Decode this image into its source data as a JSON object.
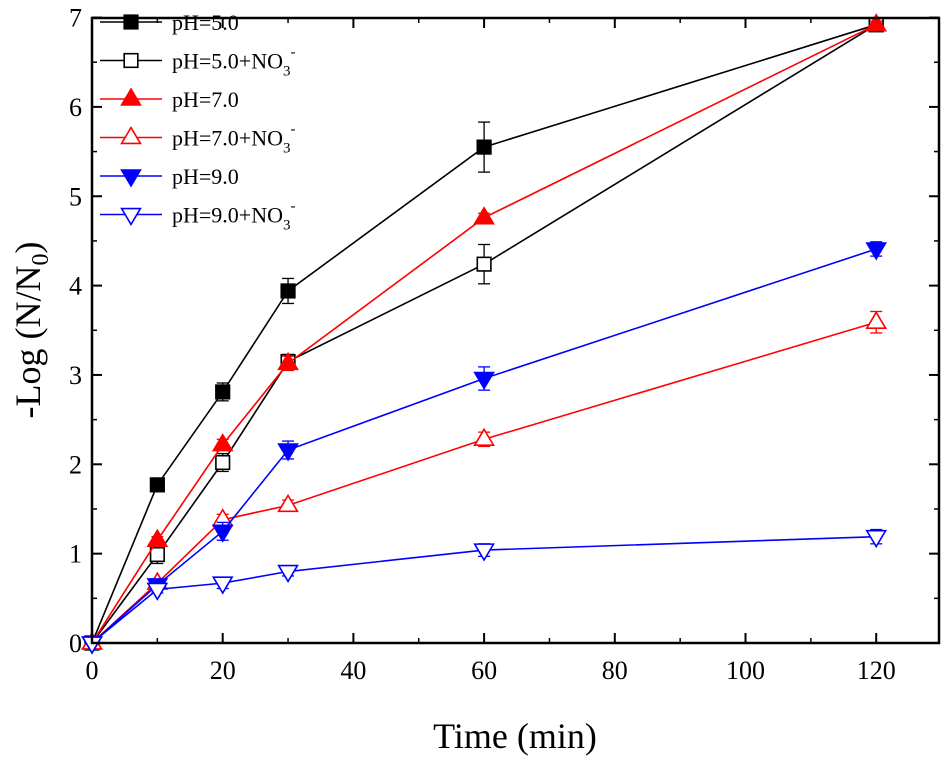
{
  "chart_data": {
    "type": "line",
    "xlabel": "Time (min)",
    "ylabel": {
      "main": "-Log (N/N",
      "sub": "0",
      "end": ")"
    },
    "xlim": [
      0,
      130
    ],
    "ylim": [
      0,
      7
    ],
    "xticks": [
      0,
      20,
      40,
      60,
      80,
      100,
      120
    ],
    "yticks": [
      0,
      1,
      2,
      3,
      4,
      5,
      6,
      7
    ],
    "x": [
      0,
      10,
      20,
      30,
      60,
      120
    ],
    "legend_position": "top-left",
    "series": [
      {
        "name": "pH=5.0",
        "name_sup": "",
        "color": "#000000",
        "marker": "square",
        "filled": true,
        "values": [
          0,
          1.77,
          2.81,
          3.94,
          5.55,
          6.92
        ],
        "errors": [
          0,
          0.04,
          0.1,
          0.14,
          0.28,
          0.04
        ]
      },
      {
        "name": "pH=5.0+NO",
        "name_sub": "3",
        "name_sup": "-",
        "color": "#000000",
        "marker": "square",
        "filled": false,
        "values": [
          0,
          0.99,
          2.02,
          3.15,
          4.24,
          6.92
        ],
        "errors": [
          0,
          0.1,
          0.1,
          0.08,
          0.22,
          0.04
        ]
      },
      {
        "name": "pH=7.0",
        "name_sup": "",
        "color": "#ff0000",
        "marker": "triangle-up",
        "filled": true,
        "values": [
          0,
          1.15,
          2.22,
          3.13,
          4.76,
          6.92
        ],
        "errors": [
          0,
          0.04,
          0.06,
          0.08,
          0.05,
          0.04
        ]
      },
      {
        "name": "pH=7.0+NO",
        "name_sub": "3",
        "name_sup": "-",
        "color": "#ff0000",
        "marker": "triangle-up",
        "filled": false,
        "values": [
          0,
          0.67,
          1.38,
          1.54,
          2.28,
          3.59
        ],
        "errors": [
          0,
          0.04,
          0.06,
          0.06,
          0.08,
          0.12
        ]
      },
      {
        "name": "pH=9.0",
        "name_sup": "",
        "color": "#0000ff",
        "marker": "triangle-down",
        "filled": true,
        "values": [
          0,
          0.65,
          1.25,
          2.16,
          2.96,
          4.41
        ],
        "errors": [
          0,
          0.04,
          0.1,
          0.1,
          0.13,
          0.08
        ]
      },
      {
        "name": "pH=9.0+NO",
        "name_sub": "3",
        "name_sup": "-",
        "color": "#0000ff",
        "marker": "triangle-down",
        "filled": false,
        "values": [
          0,
          0.6,
          0.67,
          0.8,
          1.04,
          1.19
        ],
        "errors": [
          0,
          0.04,
          0.06,
          0.05,
          0.07,
          0.08
        ]
      }
    ]
  }
}
